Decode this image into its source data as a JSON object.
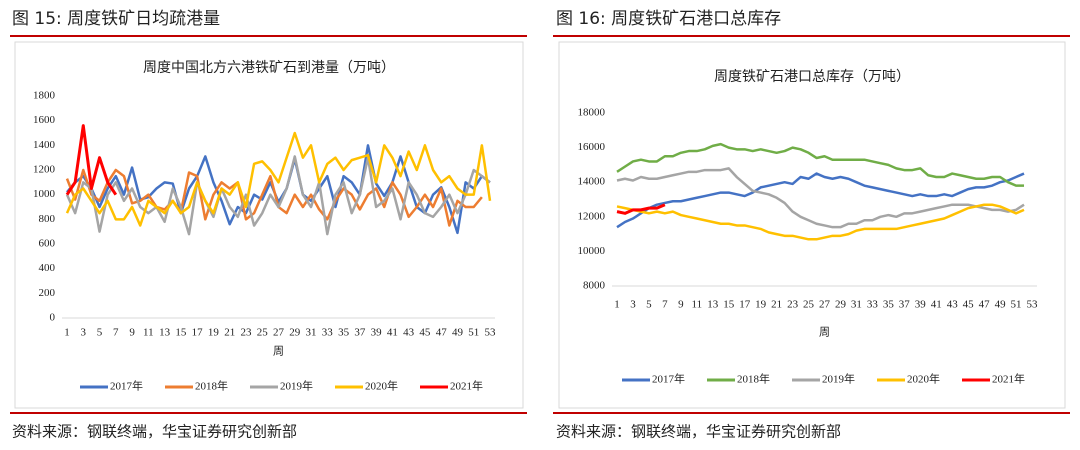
{
  "figures": [
    {
      "caption": "图 15:  周度铁矿日均疏港量",
      "source": "资料来源：钢联终端，华宝证券研究创新部"
    },
    {
      "caption": "图 16:  周度铁矿石港口总库存",
      "source": "资料来源：钢联终端，华宝证券研究创新部"
    }
  ],
  "chart_data": [
    {
      "type": "line",
      "title": "周度中国北方六港铁矿石到港量（万吨）",
      "x_label": "周",
      "categories": [
        1,
        null,
        3,
        null,
        5,
        null,
        7,
        null,
        9,
        null,
        11,
        null,
        13,
        null,
        15,
        null,
        17,
        null,
        19,
        null,
        21,
        null,
        23,
        null,
        25,
        null,
        27,
        null,
        29,
        null,
        31,
        null,
        33,
        null,
        35,
        null,
        37,
        null,
        39,
        null,
        41,
        null,
        43,
        null,
        45,
        null,
        47,
        null,
        49,
        null,
        51,
        null,
        53
      ],
      "ylim": [
        0,
        1800
      ],
      "yticks": [
        0,
        200,
        400,
        600,
        800,
        1000,
        1200,
        1400,
        1600,
        1800
      ],
      "grid": false,
      "legend": "bottom",
      "series": [
        {
          "name": "2017年",
          "color": "#4472c4",
          "values": [
            1020,
            1100,
            1150,
            1050,
            900,
            1050,
            1150,
            1000,
            1220,
            960,
            980,
            1050,
            1100,
            1090,
            850,
            1050,
            1150,
            1310,
            1100,
            950,
            760,
            900,
            850,
            1000,
            960,
            1100,
            940,
            1050,
            1290,
            1000,
            950,
            1050,
            1150,
            900,
            1150,
            1100,
            1000,
            1400,
            1090,
            990,
            1100,
            1310,
            1100,
            900,
            850,
            1000,
            1060,
            900,
            690,
            1100,
            1050,
            1150,
            1100
          ]
        },
        {
          "name": "2018年",
          "color": "#ed7d31",
          "values": [
            1130,
            960,
            1200,
            1000,
            950,
            1100,
            1200,
            1150,
            930,
            950,
            1000,
            900,
            880,
            950,
            860,
            1180,
            1150,
            800,
            1000,
            1100,
            1050,
            1100,
            800,
            850,
            1000,
            1150,
            900,
            850,
            1000,
            900,
            1000,
            880,
            800,
            950,
            1050,
            1000,
            880,
            1000,
            1050,
            900,
            1100,
            1000,
            820,
            900,
            1000,
            900,
            1050,
            750,
            950,
            900,
            900,
            980,
            null
          ]
        },
        {
          "name": "2019年",
          "color": "#a5a5a5",
          "values": [
            1000,
            850,
            1100,
            1050,
            700,
            1000,
            1100,
            950,
            1050,
            900,
            850,
            900,
            780,
            1050,
            900,
            680,
            1100,
            950,
            820,
            1050,
            900,
            820,
            1000,
            750,
            850,
            1000,
            900,
            1050,
            1310,
            1000,
            900,
            1100,
            680,
            1000,
            1100,
            850,
            1000,
            1300,
            900,
            950,
            1050,
            800,
            1100,
            1000,
            850,
            820,
            900,
            1000,
            850,
            1000,
            1200,
            1150,
            1100
          ]
        },
        {
          "name": "2020年",
          "color": "#ffc000",
          "values": [
            850,
            1000,
            1050,
            950,
            850,
            950,
            800,
            800,
            900,
            750,
            950,
            900,
            850,
            950,
            850,
            900,
            1100,
            950,
            850,
            1050,
            1000,
            1100,
            900,
            1250,
            1270,
            1200,
            1100,
            1300,
            1500,
            1300,
            1400,
            1100,
            1250,
            1300,
            1200,
            1280,
            1300,
            1320,
            1100,
            1400,
            1300,
            1150,
            1350,
            1200,
            1400,
            1200,
            1100,
            1150,
            1050,
            1000,
            1000,
            1400,
            950
          ]
        },
        {
          "name": "2021年",
          "color": "#ff0000",
          "values": [
            1000,
            1100,
            1560,
            1050,
            1300,
            1100,
            1000,
            null,
            null,
            null,
            null,
            null,
            null,
            null,
            null,
            null,
            null,
            null,
            null,
            null,
            null,
            null,
            null,
            null,
            null,
            null,
            null,
            null,
            null,
            null,
            null,
            null,
            null,
            null,
            null,
            null,
            null,
            null,
            null,
            null,
            null,
            null,
            null,
            null,
            null,
            null,
            null,
            null,
            null,
            null,
            null,
            null,
            null
          ]
        }
      ]
    },
    {
      "type": "line",
      "title": "周度铁矿石港口总库存（万吨）",
      "x_label": "周",
      "categories": [
        1,
        null,
        3,
        null,
        5,
        null,
        7,
        null,
        9,
        null,
        11,
        null,
        13,
        null,
        15,
        null,
        17,
        null,
        19,
        null,
        21,
        null,
        23,
        null,
        25,
        null,
        27,
        null,
        29,
        null,
        31,
        null,
        33,
        null,
        35,
        null,
        37,
        null,
        39,
        null,
        41,
        null,
        43,
        null,
        45,
        null,
        47,
        null,
        49,
        null,
        51,
        null,
        53
      ],
      "ylim": [
        8000,
        18000
      ],
      "yticks": [
        8000,
        10000,
        12000,
        14000,
        16000,
        18000
      ],
      "grid": false,
      "legend": "bottom",
      "series": [
        {
          "name": "2017年",
          "color": "#4472c4",
          "values": [
            11400,
            11700,
            11900,
            12200,
            12500,
            12700,
            12800,
            12900,
            12900,
            13000,
            13100,
            13200,
            13300,
            13400,
            13400,
            13300,
            13200,
            13400,
            13700,
            13800,
            13900,
            14000,
            13900,
            14300,
            14200,
            14500,
            14300,
            14200,
            14300,
            14200,
            14000,
            13800,
            13700,
            13600,
            13500,
            13400,
            13300,
            13200,
            13300,
            13200,
            13200,
            13300,
            13200,
            13400,
            13600,
            13700,
            13700,
            13800,
            14000,
            14100,
            14300,
            14500,
            null
          ]
        },
        {
          "name": "2018年",
          "color": "#70ad47",
          "values": [
            14600,
            14900,
            15200,
            15300,
            15200,
            15200,
            15500,
            15500,
            15700,
            15800,
            15800,
            15900,
            16100,
            16200,
            16000,
            15900,
            15900,
            15800,
            15900,
            15800,
            15700,
            15800,
            16000,
            15900,
            15700,
            15400,
            15500,
            15300,
            15300,
            15300,
            15300,
            15300,
            15200,
            15100,
            15000,
            14800,
            14700,
            14700,
            14800,
            14400,
            14300,
            14300,
            14500,
            14400,
            14300,
            14200,
            14200,
            14300,
            14300,
            14000,
            13800,
            13800,
            null
          ]
        },
        {
          "name": "2019年",
          "color": "#a5a5a5",
          "values": [
            14100,
            14200,
            14100,
            14300,
            14200,
            14200,
            14300,
            14400,
            14500,
            14600,
            14600,
            14700,
            14700,
            14700,
            14800,
            14300,
            13900,
            13500,
            13400,
            13300,
            13100,
            12800,
            12300,
            12000,
            11800,
            11600,
            11500,
            11400,
            11400,
            11600,
            11600,
            11800,
            11800,
            12000,
            12100,
            12000,
            12200,
            12200,
            12300,
            12400,
            12500,
            12600,
            12700,
            12700,
            12700,
            12600,
            12500,
            12400,
            12400,
            12300,
            12400,
            12700,
            null
          ]
        },
        {
          "name": "2020年",
          "color": "#ffc000",
          "values": [
            12600,
            12500,
            12400,
            12300,
            12200,
            12300,
            12200,
            12300,
            12100,
            12000,
            11900,
            11800,
            11700,
            11600,
            11600,
            11500,
            11500,
            11400,
            11300,
            11100,
            11000,
            10900,
            10900,
            10800,
            10700,
            10700,
            10800,
            10900,
            10900,
            11000,
            11200,
            11300,
            11300,
            11300,
            11300,
            11300,
            11400,
            11500,
            11600,
            11700,
            11800,
            11900,
            12100,
            12300,
            12500,
            12600,
            12700,
            12700,
            12600,
            12400,
            12200,
            12400,
            null
          ]
        },
        {
          "name": "2021年",
          "color": "#ff0000",
          "values": [
            12300,
            12200,
            12400,
            12400,
            12500,
            12500,
            12700,
            null,
            null,
            null,
            null,
            null,
            null,
            null,
            null,
            null,
            null,
            null,
            null,
            null,
            null,
            null,
            null,
            null,
            null,
            null,
            null,
            null,
            null,
            null,
            null,
            null,
            null,
            null,
            null,
            null,
            null,
            null,
            null,
            null,
            null,
            null,
            null,
            null,
            null,
            null,
            null,
            null,
            null,
            null,
            null,
            null,
            null
          ]
        }
      ]
    }
  ]
}
